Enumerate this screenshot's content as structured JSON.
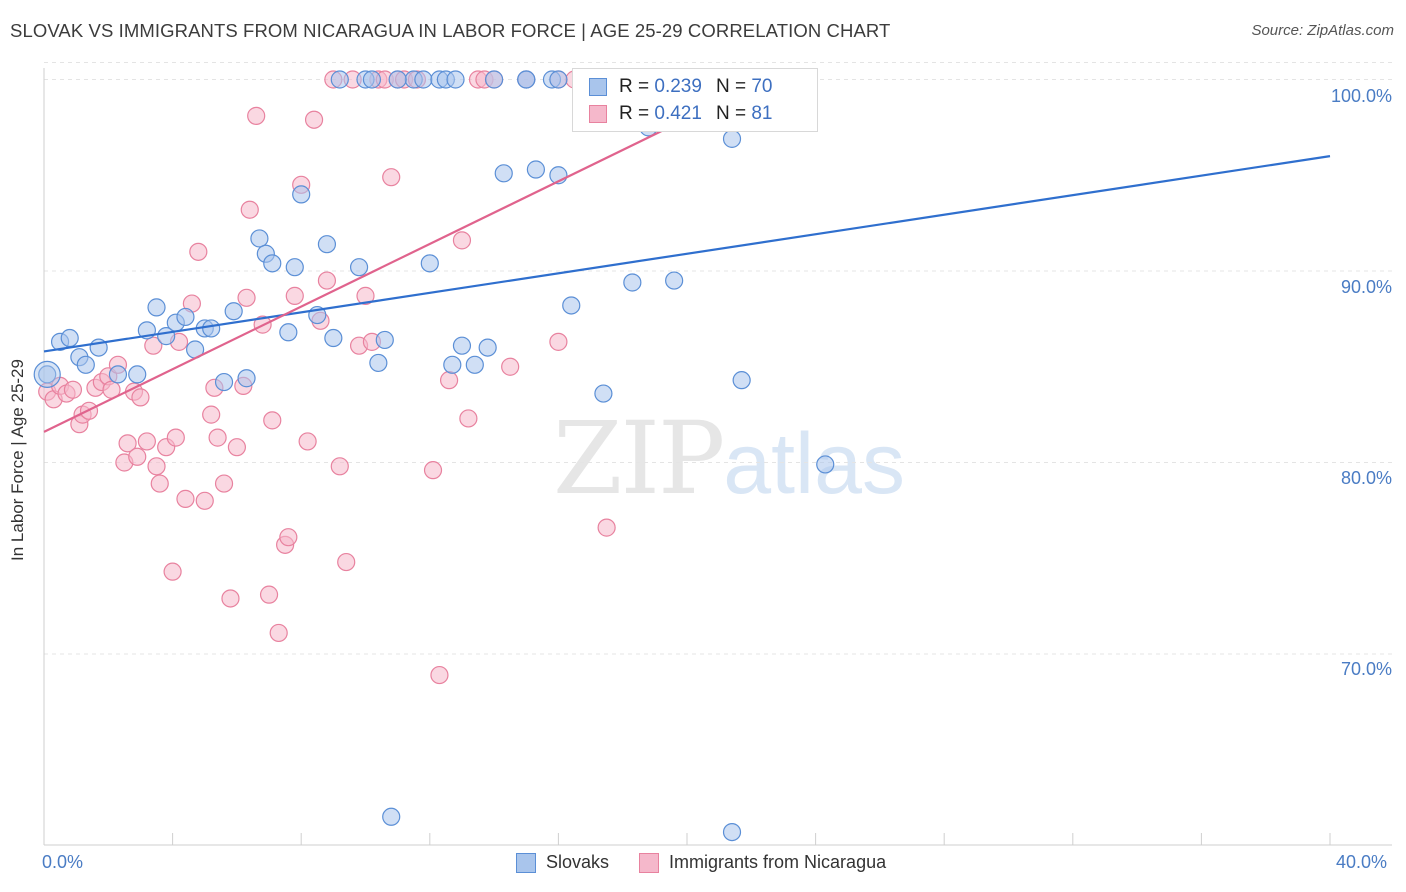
{
  "title": "SLOVAK VS IMMIGRANTS FROM NICARAGUA IN LABOR FORCE | AGE 25-29 CORRELATION CHART",
  "source": "Source: ZipAtlas.com",
  "watermark": {
    "zip": "ZIP",
    "atlas": "atlas"
  },
  "legend_top": {
    "rows": [
      {
        "r_label": "R = ",
        "r_value": "0.239",
        "n_label": "N = ",
        "n_value": "70"
      },
      {
        "r_label": "R = ",
        "r_value": "0.421",
        "n_label": "N = ",
        "n_value": "81"
      }
    ]
  },
  "legend_bottom": [
    "Slovaks",
    "Immigrants from Nicaragua"
  ],
  "colors": {
    "blue_fill": "#a9c5ec",
    "blue_stroke": "#5b8fd6",
    "blue_line": "#2f6fce",
    "pink_fill": "#f5b8cb",
    "pink_stroke": "#e8829f",
    "pink_line": "#e0638d",
    "tick_text": "#4a7cc4",
    "grid": "#e4e4e4"
  },
  "chart_data": {
    "type": "scatter",
    "title": "SLOVAK VS IMMIGRANTS FROM NICARAGUA IN LABOR FORCE | AGE 25-29 CORRELATION CHART",
    "xlabel": "",
    "ylabel": "In Labor Force | Age 25-29",
    "xlim": [
      0,
      40
    ],
    "ylim": [
      60.5,
      101.8
    ],
    "x_tick_labels": [
      "0.0%",
      "40.0%"
    ],
    "y_ticks": [
      70,
      80,
      90,
      100
    ],
    "y_tick_labels": [
      "70.0%",
      "80.0%",
      "90.0%",
      "100.0%"
    ],
    "grid": true,
    "legend_position": "top-center",
    "series": [
      {
        "name": "Slovaks",
        "r": 0.239,
        "n": 70,
        "trend": {
          "x": [
            0,
            40
          ],
          "y": [
            85.8,
            96.0
          ]
        },
        "points": [
          [
            0.1,
            84.6
          ],
          [
            0.5,
            86.3
          ],
          [
            0.8,
            86.5
          ],
          [
            1.1,
            85.5
          ],
          [
            1.3,
            85.1
          ],
          [
            1.7,
            86.0
          ],
          [
            2.3,
            84.6
          ],
          [
            2.9,
            84.6
          ],
          [
            3.2,
            86.9
          ],
          [
            3.5,
            88.1
          ],
          [
            3.8,
            86.6
          ],
          [
            4.1,
            87.3
          ],
          [
            4.4,
            87.6
          ],
          [
            4.7,
            85.9
          ],
          [
            5.0,
            87.0
          ],
          [
            5.2,
            87.0
          ],
          [
            5.6,
            84.2
          ],
          [
            5.9,
            87.9
          ],
          [
            6.3,
            84.4
          ],
          [
            6.7,
            91.7
          ],
          [
            6.9,
            90.9
          ],
          [
            7.1,
            90.4
          ],
          [
            7.6,
            86.8
          ],
          [
            7.8,
            90.2
          ],
          [
            8.0,
            94.0
          ],
          [
            8.5,
            87.7
          ],
          [
            8.8,
            91.4
          ],
          [
            9.0,
            86.5
          ],
          [
            9.2,
            100.0
          ],
          [
            9.8,
            90.2
          ],
          [
            10.0,
            100.0
          ],
          [
            10.4,
            85.2
          ],
          [
            10.6,
            86.4
          ],
          [
            11.5,
            100.0
          ],
          [
            11.8,
            100.0
          ],
          [
            10.2,
            100.0
          ],
          [
            11.0,
            100.0
          ],
          [
            10.8,
            61.5
          ],
          [
            12.0,
            90.4
          ],
          [
            12.7,
            85.1
          ],
          [
            13.0,
            86.1
          ],
          [
            14.0,
            100.0
          ],
          [
            12.3,
            100.0
          ],
          [
            12.5,
            100.0
          ],
          [
            14.3,
            95.1
          ],
          [
            15.0,
            100.0
          ],
          [
            12.8,
            100.0
          ],
          [
            13.4,
            85.1
          ],
          [
            13.8,
            86.0
          ],
          [
            15.0,
            100.0
          ],
          [
            15.8,
            100.0
          ],
          [
            15.3,
            95.3
          ],
          [
            16.0,
            100.0
          ],
          [
            17.4,
            83.6
          ],
          [
            16.0,
            95.0
          ],
          [
            16.4,
            88.2
          ],
          [
            17.5,
            100.0
          ],
          [
            18.3,
            89.4
          ],
          [
            18.8,
            97.5
          ],
          [
            19.5,
            100.0
          ],
          [
            19.2,
            100.0
          ],
          [
            19.6,
            89.5
          ],
          [
            20.2,
            100.0
          ],
          [
            21.4,
            96.9
          ],
          [
            21.4,
            100.0
          ],
          [
            21.4,
            60.7
          ],
          [
            22.3,
            100.0
          ],
          [
            21.7,
            84.3
          ],
          [
            22.8,
            100.0
          ],
          [
            24.3,
            79.9
          ]
        ]
      },
      {
        "name": "Immigrants from Nicaragua",
        "r": 0.421,
        "n": 81,
        "trend": {
          "x": [
            0,
            22.5
          ],
          "y": [
            81.6,
            100.0
          ]
        },
        "points": [
          [
            0.1,
            83.7
          ],
          [
            0.3,
            83.3
          ],
          [
            0.5,
            84.0
          ],
          [
            0.7,
            83.6
          ],
          [
            0.9,
            83.8
          ],
          [
            1.1,
            82.0
          ],
          [
            1.2,
            82.5
          ],
          [
            1.4,
            82.7
          ],
          [
            1.6,
            83.9
          ],
          [
            1.8,
            84.2
          ],
          [
            2.0,
            84.5
          ],
          [
            2.1,
            83.8
          ],
          [
            2.3,
            85.1
          ],
          [
            2.5,
            80.0
          ],
          [
            2.6,
            81.0
          ],
          [
            2.8,
            83.7
          ],
          [
            2.9,
            80.3
          ],
          [
            3.0,
            83.4
          ],
          [
            3.2,
            81.1
          ],
          [
            3.4,
            86.1
          ],
          [
            3.5,
            79.8
          ],
          [
            3.6,
            78.9
          ],
          [
            3.8,
            80.8
          ],
          [
            4.0,
            74.3
          ],
          [
            4.1,
            81.3
          ],
          [
            4.2,
            86.3
          ],
          [
            4.4,
            78.1
          ],
          [
            4.6,
            88.3
          ],
          [
            4.8,
            91.0
          ],
          [
            5.0,
            78.0
          ],
          [
            5.2,
            82.5
          ],
          [
            5.3,
            83.9
          ],
          [
            5.4,
            81.3
          ],
          [
            5.6,
            78.9
          ],
          [
            5.8,
            72.9
          ],
          [
            6.0,
            80.8
          ],
          [
            6.2,
            84.0
          ],
          [
            6.3,
            88.6
          ],
          [
            6.4,
            93.2
          ],
          [
            6.6,
            98.1
          ],
          [
            6.8,
            87.2
          ],
          [
            7.0,
            73.1
          ],
          [
            7.1,
            82.2
          ],
          [
            7.3,
            71.1
          ],
          [
            7.5,
            75.7
          ],
          [
            7.6,
            76.1
          ],
          [
            7.8,
            88.7
          ],
          [
            8.0,
            94.5
          ],
          [
            8.2,
            81.1
          ],
          [
            8.4,
            97.9
          ],
          [
            8.6,
            87.4
          ],
          [
            8.8,
            89.5
          ],
          [
            9.0,
            100.0
          ],
          [
            9.2,
            79.8
          ],
          [
            9.4,
            74.8
          ],
          [
            9.6,
            100.0
          ],
          [
            9.8,
            86.1
          ],
          [
            10.0,
            88.7
          ],
          [
            10.2,
            86.3
          ],
          [
            10.4,
            100.0
          ],
          [
            10.6,
            100.0
          ],
          [
            10.8,
            94.9
          ],
          [
            11.0,
            100.0
          ],
          [
            11.2,
            100.0
          ],
          [
            11.6,
            100.0
          ],
          [
            12.1,
            79.6
          ],
          [
            12.3,
            68.9
          ],
          [
            12.6,
            84.3
          ],
          [
            13.0,
            91.6
          ],
          [
            13.2,
            82.3
          ],
          [
            13.5,
            100.0
          ],
          [
            13.7,
            100.0
          ],
          [
            14.0,
            100.0
          ],
          [
            14.5,
            85.0
          ],
          [
            15.0,
            100.0
          ],
          [
            16.0,
            100.0
          ],
          [
            16.5,
            100.0
          ],
          [
            17.0,
            100.0
          ],
          [
            17.5,
            76.6
          ],
          [
            18.0,
            100.0
          ],
          [
            16.0,
            86.3
          ]
        ]
      }
    ]
  }
}
